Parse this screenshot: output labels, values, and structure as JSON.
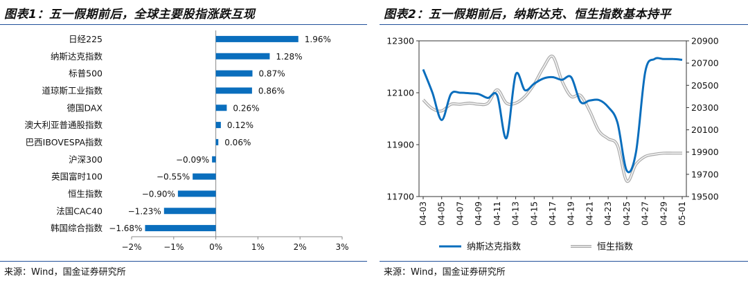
{
  "left": {
    "title": "图表1：五一假期前后，全球主要股指涨跌互现",
    "source": "来源：Wind，国金证券研究所",
    "chart_data": {
      "type": "bar",
      "orientation": "horizontal",
      "categories": [
        "日经225",
        "纳斯达克指数",
        "标普500",
        "道琼斯工业指数",
        "德国DAX",
        "澳大利亚普通股指数",
        "巴西IBOVESPA指数",
        "沪深300",
        "英国富时100",
        "恒生指数",
        "法国CAC40",
        "韩国综合指数"
      ],
      "values": [
        1.96,
        1.28,
        0.87,
        0.86,
        0.26,
        0.12,
        0.06,
        -0.09,
        -0.55,
        -0.9,
        -1.23,
        -1.68
      ],
      "data_labels": [
        "1.96%",
        "1.28%",
        "0.87%",
        "0.86%",
        "0.26%",
        "0.12%",
        "0.06%",
        "−0.09%",
        "−0.55%",
        "−0.90%",
        "−1.23%",
        "−1.68%"
      ],
      "xlim": [
        -2,
        3
      ],
      "xticks": [
        "−2%",
        "−1%",
        "0%",
        "1%",
        "2%",
        "3%"
      ],
      "bar_color": "#0a6ebd"
    }
  },
  "right": {
    "title": "图表2：五一假期前后，纳斯达克、恒生指数基本持平",
    "source": "来源：Wind，国金证券研究所",
    "chart_data": {
      "type": "line",
      "x": [
        "04-03",
        "04-04",
        "04-05",
        "04-06",
        "04-07",
        "04-08",
        "04-09",
        "04-10",
        "04-11",
        "04-12",
        "04-13",
        "04-14",
        "04-15",
        "04-16",
        "04-17",
        "04-18",
        "04-19",
        "04-20",
        "04-21",
        "04-22",
        "04-23",
        "04-24",
        "04-25",
        "04-26",
        "04-27",
        "04-28",
        "04-29",
        "04-30",
        "05-01"
      ],
      "xticks": [
        "04-03",
        "04-05",
        "04-07",
        "04-09",
        "04-11",
        "04-13",
        "04-15",
        "04-17",
        "04-19",
        "04-21",
        "04-23",
        "04-25",
        "04-27",
        "04-29",
        "05-01"
      ],
      "y_left": {
        "ylim": [
          11700,
          12300
        ],
        "ticks": [
          "11700",
          "11900",
          "12100",
          "12300"
        ]
      },
      "y_right": {
        "ylim": [
          19500,
          20900
        ],
        "ticks": [
          "19500",
          "19700",
          "19900",
          "20100",
          "20300",
          "20500",
          "20700",
          "20900"
        ]
      },
      "series": [
        {
          "name": "纳斯达克指数",
          "axis": "left",
          "color": "#0a6ebd",
          "values": [
            12190,
            12100,
            11995,
            12095,
            12100,
            12098,
            12095,
            12080,
            12090,
            11925,
            12170,
            12110,
            12135,
            12155,
            12160,
            12150,
            12160,
            12065,
            12070,
            12072,
            12045,
            11985,
            11800,
            11870,
            12180,
            12230,
            12230,
            12230,
            12227
          ]
        },
        {
          "name": "恒生指数",
          "axis": "right",
          "color": "#c6c6c6",
          "values": [
            20370,
            20290,
            20270,
            20330,
            20330,
            20340,
            20330,
            20340,
            20460,
            20340,
            20340,
            20400,
            20510,
            20660,
            20760,
            20540,
            20400,
            20410,
            20270,
            20090,
            20020,
            19960,
            19640,
            19790,
            19860,
            19880,
            19890,
            19890,
            19890
          ]
        }
      ],
      "legend_position": "bottom"
    }
  }
}
